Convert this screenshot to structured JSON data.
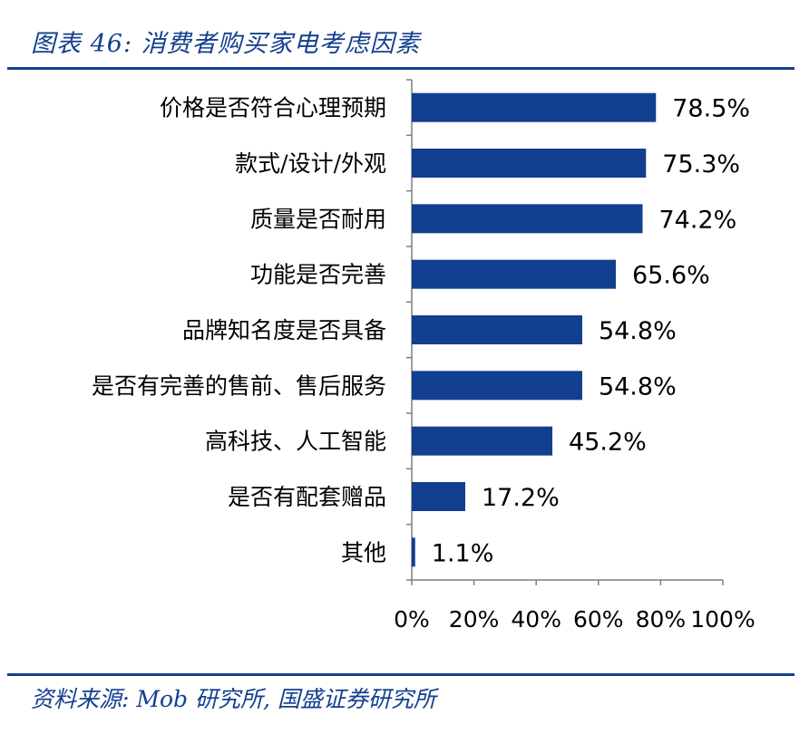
{
  "figure": {
    "title": "图表 46:  消费者购买家电考虑因素",
    "source": "资料来源:  Mob 研究所,  国盛证券研究所"
  },
  "chart_data": {
    "type": "bar",
    "orientation": "horizontal",
    "categories": [
      "价格是否符合心理预期",
      "款式/设计/外观",
      "质量是否耐用",
      "功能是否完善",
      "品牌知名度是否具备",
      "是否有完善的售前、售后服务",
      "高科技、人工智能",
      "是否有配套赠品",
      "其他"
    ],
    "values": [
      78.5,
      75.3,
      74.2,
      65.6,
      54.8,
      54.8,
      45.2,
      17.2,
      1.1
    ],
    "value_labels": [
      "78.5%",
      "75.3%",
      "74.2%",
      "65.6%",
      "54.8%",
      "54.8%",
      "45.2%",
      "17.2%",
      "1.1%"
    ],
    "xlim": [
      0,
      100
    ],
    "x_ticks": [
      0,
      20,
      40,
      60,
      80,
      100
    ],
    "x_tick_labels": [
      "0%",
      "20%",
      "40%",
      "60%",
      "80%",
      "100%"
    ],
    "bar_color": "#123f8f",
    "grid": false,
    "legend": "none"
  }
}
